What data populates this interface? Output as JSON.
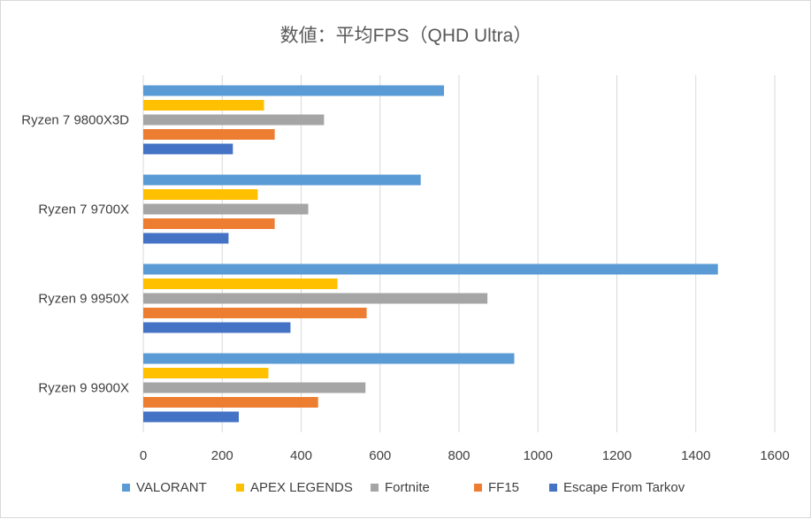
{
  "chart_data": {
    "type": "bar",
    "orientation": "horizontal",
    "title": "数値：平均FPS（QHD Ultra）",
    "xlabel": "",
    "ylabel": "",
    "xlim": [
      0,
      1600
    ],
    "x_ticks": [
      0,
      200,
      400,
      600,
      800,
      1000,
      1200,
      1400,
      1600
    ],
    "grid": "vertical",
    "legend_position": "bottom",
    "categories": [
      "Ryzen 7 9800X3D",
      "Ryzen 7 9700X",
      "Ryzen 9 9950X",
      "Ryzen 9 9900X"
    ],
    "series": [
      {
        "name": "VALORANT",
        "color": "#5b9bd5",
        "values": [
          762,
          703,
          1456,
          940
        ]
      },
      {
        "name": "APEX LEGENDS",
        "color": "#ffc000",
        "values": [
          306,
          290,
          492,
          317
        ]
      },
      {
        "name": "Fortnite",
        "color": "#a5a5a5",
        "values": [
          458,
          418,
          872,
          563
        ]
      },
      {
        "name": "FF15",
        "color": "#ed7d31",
        "values": [
          333,
          333,
          566,
          443
        ]
      },
      {
        "name": "Escape From Tarkov",
        "color": "#4472c4",
        "values": [
          227,
          216,
          373,
          242
        ]
      }
    ]
  }
}
